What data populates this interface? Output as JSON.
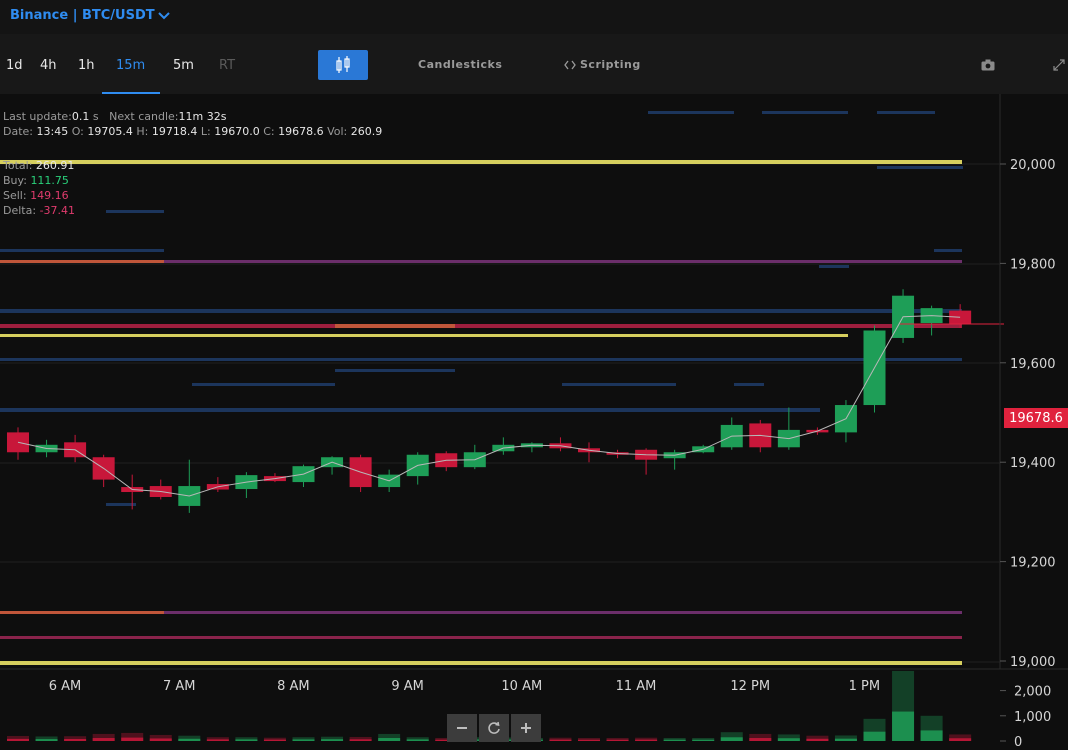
{
  "header": {
    "symbol": "Binance | BTC/USDT"
  },
  "toolbar": {
    "timeframes": [
      {
        "label": "1d"
      },
      {
        "label": "4h"
      },
      {
        "label": "1h"
      },
      {
        "label": "15m"
      },
      {
        "label": "5m"
      },
      {
        "label": "RT"
      }
    ],
    "active_timeframe": "15m",
    "candlesticks_label": "Candlesticks",
    "scripting_label": "Scripting"
  },
  "info": {
    "last_update_label": "Last update:",
    "last_update_value": "0.1",
    "last_update_unit": "s",
    "next_candle_label": "Next candle:",
    "next_candle_value": "11m 32s",
    "date_label": "Date:",
    "date_value": "13:45",
    "o_label": "O:",
    "o_value": "19705.4",
    "h_label": "H:",
    "h_value": "19718.4",
    "l_label": "L:",
    "l_value": "19670.0",
    "c_label": "C:",
    "c_value": "19678.6",
    "vol_label": "Vol:",
    "vol_value": "260.9",
    "total_label": "Total:",
    "total_value": "260.91",
    "buy_label": "Buy:",
    "buy_value": "111.75",
    "sell_label": "Sell:",
    "sell_value": "149.16",
    "delta_label": "Delta:",
    "delta_value": "-37.41"
  },
  "last_price": "19678.6",
  "colors": {
    "up": "#1e9e57",
    "down": "#c8173a",
    "accent": "#2f8cf0",
    "last_price": "#e0223d"
  },
  "chart_data": {
    "type": "candlestick",
    "y_ticks": [
      "20,000",
      "19,800",
      "19,600",
      "19,400",
      "19,200",
      "19,000"
    ],
    "x_ticks": [
      "6 AM",
      "7 AM",
      "8 AM",
      "9 AM",
      "10 AM",
      "11 AM",
      "12 PM",
      "1 PM"
    ],
    "volume_ticks": [
      "2,000",
      "1,000",
      "0"
    ],
    "levels": [
      {
        "price": 20000,
        "kind": "yellow"
      },
      {
        "price": 19800,
        "kind": "orange-purple"
      },
      {
        "price": 19665,
        "kind": "red"
      },
      {
        "price": 19655,
        "kind": "yellow"
      },
      {
        "price": 19095,
        "kind": "orange-purple"
      },
      {
        "price": 19045,
        "kind": "red-purple"
      },
      {
        "price": 18995,
        "kind": "yellow"
      }
    ],
    "candles": [
      {
        "o": 19460,
        "h": 19470,
        "l": 19405,
        "c": 19420
      },
      {
        "o": 19420,
        "h": 19445,
        "l": 19410,
        "c": 19435
      },
      {
        "o": 19440,
        "h": 19455,
        "l": 19400,
        "c": 19410
      },
      {
        "o": 19410,
        "h": 19415,
        "l": 19350,
        "c": 19365
      },
      {
        "o": 19350,
        "h": 19375,
        "l": 19305,
        "c": 19340
      },
      {
        "o": 19352,
        "h": 19365,
        "l": 19325,
        "c": 19330
      },
      {
        "o": 19312,
        "h": 19405,
        "l": 19298,
        "c": 19352
      },
      {
        "o": 19356,
        "h": 19370,
        "l": 19340,
        "c": 19345
      },
      {
        "o": 19346,
        "h": 19380,
        "l": 19328,
        "c": 19374
      },
      {
        "o": 19372,
        "h": 19378,
        "l": 19360,
        "c": 19362
      },
      {
        "o": 19360,
        "h": 19395,
        "l": 19350,
        "c": 19392
      },
      {
        "o": 19390,
        "h": 19412,
        "l": 19375,
        "c": 19410
      },
      {
        "o": 19410,
        "h": 19415,
        "l": 19340,
        "c": 19350
      },
      {
        "o": 19350,
        "h": 19385,
        "l": 19340,
        "c": 19375
      },
      {
        "o": 19372,
        "h": 19420,
        "l": 19355,
        "c": 19415
      },
      {
        "o": 19418,
        "h": 19422,
        "l": 19382,
        "c": 19390
      },
      {
        "o": 19390,
        "h": 19435,
        "l": 19386,
        "c": 19420
      },
      {
        "o": 19422,
        "h": 19450,
        "l": 19415,
        "c": 19435
      },
      {
        "o": 19430,
        "h": 19440,
        "l": 19420,
        "c": 19438
      },
      {
        "o": 19438,
        "h": 19450,
        "l": 19422,
        "c": 19428
      },
      {
        "o": 19428,
        "h": 19440,
        "l": 19400,
        "c": 19420
      },
      {
        "o": 19420,
        "h": 19425,
        "l": 19408,
        "c": 19415
      },
      {
        "o": 19425,
        "h": 19428,
        "l": 19375,
        "c": 19405
      },
      {
        "o": 19408,
        "h": 19425,
        "l": 19385,
        "c": 19420
      },
      {
        "o": 19420,
        "h": 19435,
        "l": 19418,
        "c": 19432
      },
      {
        "o": 19430,
        "h": 19490,
        "l": 19425,
        "c": 19475
      },
      {
        "o": 19478,
        "h": 19485,
        "l": 19420,
        "c": 19430
      },
      {
        "o": 19430,
        "h": 19510,
        "l": 19425,
        "c": 19465
      },
      {
        "o": 19465,
        "h": 19470,
        "l": 19455,
        "c": 19460
      },
      {
        "o": 19460,
        "h": 19525,
        "l": 19440,
        "c": 19515
      },
      {
        "o": 19515,
        "h": 19675,
        "l": 19500,
        "c": 19665
      },
      {
        "o": 19650,
        "h": 19748,
        "l": 19640,
        "c": 19735
      },
      {
        "o": 19680,
        "h": 19715,
        "l": 19655,
        "c": 19710
      },
      {
        "o": 19705,
        "h": 19718,
        "l": 19670,
        "c": 19678
      }
    ],
    "volumes": [
      200,
      180,
      190,
      280,
      320,
      240,
      210,
      150,
      150,
      130,
      150,
      170,
      160,
      280,
      150,
      120,
      150,
      140,
      120,
      130,
      110,
      120,
      130,
      120,
      110,
      350,
      280,
      260,
      210,
      220,
      880,
      2780,
      1000,
      260
    ]
  }
}
